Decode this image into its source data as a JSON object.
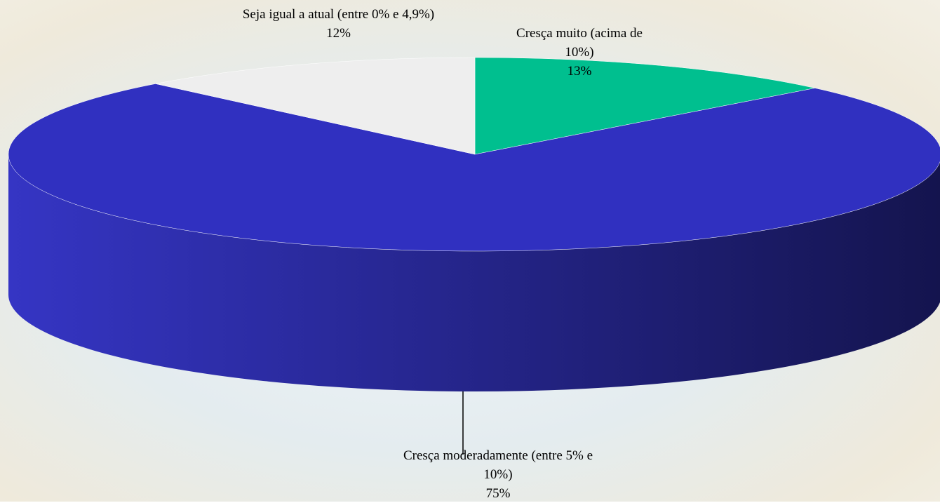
{
  "chart_data": {
    "type": "pie3d",
    "categories": [
      "Cresça muito (acima de 10%)",
      "Cresça moderadamente (entre 5% e 10%)",
      "Seja igual a atual (entre 0% e 4,9%)"
    ],
    "values": [
      13,
      75,
      12
    ],
    "value_labels": [
      "13%",
      "75%",
      "12%"
    ],
    "colors": [
      "#00bf8f",
      "#3030c0",
      "#eeeeee"
    ]
  }
}
